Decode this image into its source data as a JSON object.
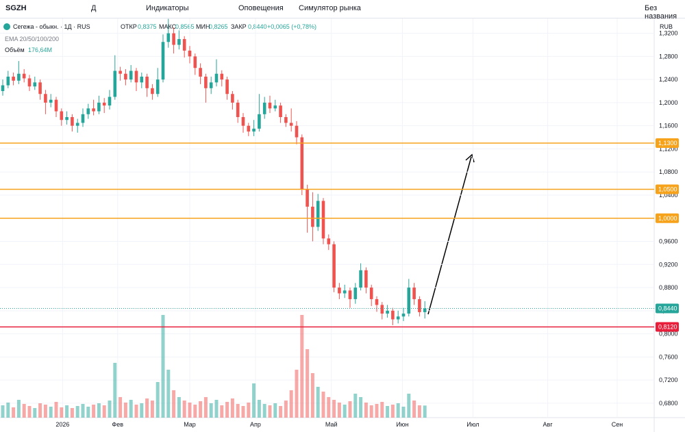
{
  "toolbar": {
    "symbol": "SGZH",
    "interval": "Д",
    "indicators": "Индикаторы",
    "alerts": "Оповещения",
    "replay": "Симулятор рынка",
    "layout": "Без названия"
  },
  "chart_data": {
    "type": "candlestick",
    "title": "Сегежа - обыкн. · 1Д · RUS",
    "legend": {
      "open_label": "ОТКР",
      "open": "0,8375",
      "high_label": "МАКС",
      "high": "0,8565",
      "low_label": "МИН",
      "low": "0,8265",
      "close_label": "ЗАКР",
      "close": "0,8440",
      "change": "+0,0065 (+0,78%)",
      "ema": "EMA 20/50/100/200",
      "volume_label": "Объём",
      "volume": "176,64M"
    },
    "currency": "RUB",
    "up_color": "#26a69a",
    "down_color": "#ef5350",
    "ylim": [
      0.655,
      1.3456
    ],
    "yticks": [
      {
        "value": 0.68,
        "label": "0,6800"
      },
      {
        "value": 0.72,
        "label": "0,7200"
      },
      {
        "value": 0.76,
        "label": "0,7600"
      },
      {
        "value": 0.8,
        "label": "0,8000"
      },
      {
        "value": 0.84,
        "label": "0,8400"
      },
      {
        "value": 0.88,
        "label": "0,8800"
      },
      {
        "value": 0.92,
        "label": "0,9200"
      },
      {
        "value": 0.96,
        "label": "0,9600"
      },
      {
        "value": 1.0,
        "label": "1,0000"
      },
      {
        "value": 1.04,
        "label": "1,0400"
      },
      {
        "value": 1.08,
        "label": "1,0800"
      },
      {
        "value": 1.12,
        "label": "1,1200"
      },
      {
        "value": 1.16,
        "label": "1,1600"
      },
      {
        "value": 1.2,
        "label": "1,2000"
      },
      {
        "value": 1.24,
        "label": "1,2400"
      },
      {
        "value": 1.28,
        "label": "1,2800"
      },
      {
        "value": 1.32,
        "label": "1,3200"
      }
    ],
    "xticks": [
      {
        "value": 11.2,
        "label": "2026"
      },
      {
        "value": 21.5,
        "label": "Фев"
      },
      {
        "value": 35,
        "label": "Мар"
      },
      {
        "value": 47.3,
        "label": "Апр"
      },
      {
        "value": 61.5,
        "label": "Май"
      },
      {
        "value": 74.8,
        "label": "Июн"
      },
      {
        "value": 88,
        "label": "Июл"
      },
      {
        "value": 102,
        "label": "Авг"
      },
      {
        "value": 115,
        "label": "Сен"
      }
    ],
    "levels": [
      {
        "value": 1.13,
        "label": "1,1300",
        "color": "#f7a21b"
      },
      {
        "value": 1.05,
        "label": "1,0500",
        "color": "#f7a21b"
      },
      {
        "value": 1.0,
        "label": "1,0000",
        "color": "#f7a21b"
      },
      {
        "value": 0.812,
        "label": "0,8120",
        "color": "#e91e3a"
      }
    ],
    "last_price": {
      "value": 0.844,
      "label": "0,8440",
      "color": "#26a69a"
    },
    "candles": [
      [
        1.22,
        1.24,
        1.212,
        1.23
      ],
      [
        1.23,
        1.255,
        1.225,
        1.245
      ],
      [
        1.245,
        1.252,
        1.23,
        1.238
      ],
      [
        1.238,
        1.272,
        1.232,
        1.25
      ],
      [
        1.25,
        1.258,
        1.235,
        1.242
      ],
      [
        1.242,
        1.248,
        1.22,
        1.228
      ],
      [
        1.228,
        1.245,
        1.222,
        1.235
      ],
      [
        1.235,
        1.24,
        1.205,
        1.215
      ],
      [
        1.215,
        1.222,
        1.18,
        1.2
      ],
      [
        1.2,
        1.215,
        1.192,
        1.205
      ],
      [
        1.205,
        1.21,
        1.175,
        1.185
      ],
      [
        1.185,
        1.19,
        1.16,
        1.17
      ],
      [
        1.17,
        1.185,
        1.162,
        1.175
      ],
      [
        1.175,
        1.18,
        1.15,
        1.16
      ],
      [
        1.16,
        1.172,
        1.148,
        1.165
      ],
      [
        1.165,
        1.19,
        1.158,
        1.18
      ],
      [
        1.18,
        1.198,
        1.172,
        1.19
      ],
      [
        1.19,
        1.205,
        1.178,
        1.185
      ],
      [
        1.185,
        1.212,
        1.18,
        1.2
      ],
      [
        1.2,
        1.208,
        1.182,
        1.195
      ],
      [
        1.195,
        1.222,
        1.188,
        1.21
      ],
      [
        1.21,
        1.282,
        1.205,
        1.255
      ],
      [
        1.255,
        1.262,
        1.238,
        1.25
      ],
      [
        1.25,
        1.258,
        1.23,
        1.24
      ],
      [
        1.24,
        1.265,
        1.235,
        1.255
      ],
      [
        1.255,
        1.26,
        1.22,
        1.235
      ],
      [
        1.235,
        1.252,
        1.225,
        1.245
      ],
      [
        1.245,
        1.25,
        1.21,
        1.225
      ],
      [
        1.225,
        1.232,
        1.205,
        1.215
      ],
      [
        1.215,
        1.26,
        1.21,
        1.24
      ],
      [
        1.24,
        1.318,
        1.235,
        1.305
      ],
      [
        1.305,
        1.345,
        1.295,
        1.32
      ],
      [
        1.32,
        1.33,
        1.285,
        1.3
      ],
      [
        1.3,
        1.325,
        1.292,
        1.31
      ],
      [
        1.31,
        1.315,
        1.278,
        1.29
      ],
      [
        1.29,
        1.298,
        1.268,
        1.28
      ],
      [
        1.28,
        1.285,
        1.248,
        1.26
      ],
      [
        1.26,
        1.268,
        1.232,
        1.245
      ],
      [
        1.245,
        1.25,
        1.2,
        1.225
      ],
      [
        1.225,
        1.245,
        1.215,
        1.235
      ],
      [
        1.235,
        1.275,
        1.228,
        1.25
      ],
      [
        1.25,
        1.256,
        1.228,
        1.24
      ],
      [
        1.24,
        1.245,
        1.205,
        1.215
      ],
      [
        1.215,
        1.22,
        1.188,
        1.2
      ],
      [
        1.2,
        1.205,
        1.165,
        1.175
      ],
      [
        1.175,
        1.182,
        1.148,
        1.16
      ],
      [
        1.16,
        1.165,
        1.142,
        1.15
      ],
      [
        1.15,
        1.17,
        1.142,
        1.155
      ],
      [
        1.155,
        1.215,
        1.15,
        1.18
      ],
      [
        1.18,
        1.21,
        1.172,
        1.2
      ],
      [
        1.2,
        1.212,
        1.182,
        1.19
      ],
      [
        1.19,
        1.205,
        1.185,
        1.195
      ],
      [
        1.195,
        1.2,
        1.165,
        1.175
      ],
      [
        1.175,
        1.18,
        1.158,
        1.165
      ],
      [
        1.165,
        1.19,
        1.15,
        1.16
      ],
      [
        1.16,
        1.168,
        1.128,
        1.14
      ],
      [
        1.14,
        1.145,
        1.04,
        1.05
      ],
      [
        1.05,
        1.058,
        0.975,
        1.02
      ],
      [
        1.02,
        1.045,
        0.96,
        0.985
      ],
      [
        0.985,
        1.042,
        0.978,
        1.03
      ],
      [
        1.03,
        1.035,
        0.955,
        0.965
      ],
      [
        0.965,
        0.972,
        0.945,
        0.955
      ],
      [
        0.955,
        0.96,
        0.872,
        0.88
      ],
      [
        0.88,
        0.888,
        0.86,
        0.87
      ],
      [
        0.87,
        0.885,
        0.862,
        0.875
      ],
      [
        0.875,
        0.88,
        0.845,
        0.86
      ],
      [
        0.86,
        0.888,
        0.852,
        0.88
      ],
      [
        0.88,
        0.922,
        0.875,
        0.91
      ],
      [
        0.91,
        0.915,
        0.87,
        0.88
      ],
      [
        0.88,
        0.885,
        0.848,
        0.86
      ],
      [
        0.86,
        0.865,
        0.838,
        0.85
      ],
      [
        0.85,
        0.855,
        0.825,
        0.835
      ],
      [
        0.835,
        0.85,
        0.828,
        0.84
      ],
      [
        0.84,
        0.845,
        0.815,
        0.825
      ],
      [
        0.825,
        0.84,
        0.818,
        0.83
      ],
      [
        0.83,
        0.845,
        0.822,
        0.835
      ],
      [
        0.835,
        0.895,
        0.83,
        0.88
      ],
      [
        0.88,
        0.888,
        0.85,
        0.86
      ],
      [
        0.86,
        0.865,
        0.83,
        0.8375
      ],
      [
        0.8375,
        0.8565,
        0.8265,
        0.844
      ]
    ],
    "volumes": [
      180,
      220,
      150,
      260,
      200,
      170,
      140,
      210,
      190,
      160,
      230,
      150,
      180,
      140,
      170,
      200,
      160,
      190,
      210,
      180,
      250,
      800,
      300,
      220,
      260,
      190,
      210,
      280,
      250,
      520,
      1500,
      700,
      400,
      300,
      250,
      220,
      190,
      240,
      300,
      210,
      260,
      180,
      230,
      280,
      200,
      170,
      220,
      500,
      260,
      200,
      180,
      210,
      170,
      250,
      400,
      700,
      1500,
      1000,
      650,
      450,
      380,
      300,
      260,
      220,
      190,
      240,
      350,
      300,
      220,
      180,
      200,
      230,
      170,
      190,
      210,
      160,
      350,
      250,
      180,
      176.64
    ]
  }
}
